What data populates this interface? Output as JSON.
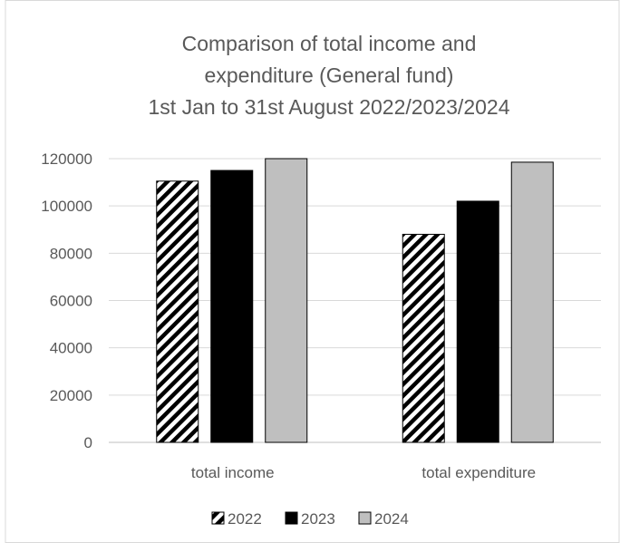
{
  "chart_data": {
    "type": "bar",
    "title_lines": [
      "Comparison of total income and",
      "expenditure (General fund)",
      "1st Jan to 31st August 2022/2023/2024"
    ],
    "categories": [
      "total income",
      "total expenditure"
    ],
    "series": [
      {
        "name": "2022",
        "values": [
          110500,
          88000
        ],
        "color": "#000000",
        "pattern": "diagonal-stripes"
      },
      {
        "name": "2023",
        "values": [
          115000,
          102000
        ],
        "color": "#000000",
        "pattern": "solid"
      },
      {
        "name": "2024",
        "values": [
          120000,
          118500
        ],
        "color": "#bfbfbf",
        "pattern": "solid"
      }
    ],
    "yticks": [
      "0",
      "20000",
      "40000",
      "60000",
      "80000",
      "100000",
      "120000"
    ],
    "ylim": [
      0,
      120000
    ],
    "grid": true,
    "legend_position": "bottom"
  }
}
